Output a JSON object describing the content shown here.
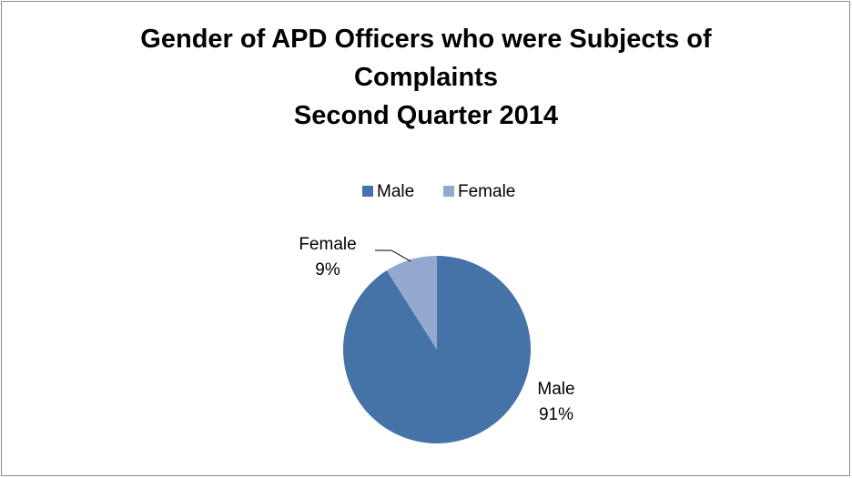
{
  "chart_data": {
    "type": "pie",
    "title": "Gender of APD Officers who were Subjects of Complaints",
    "subtitle": "Second Quarter 2014",
    "categories": [
      "Male",
      "Female"
    ],
    "values": [
      91,
      9
    ],
    "value_labels": [
      "91%",
      "9%"
    ],
    "colors": [
      "#4572a7",
      "#93a9cf"
    ],
    "legend": "top"
  }
}
